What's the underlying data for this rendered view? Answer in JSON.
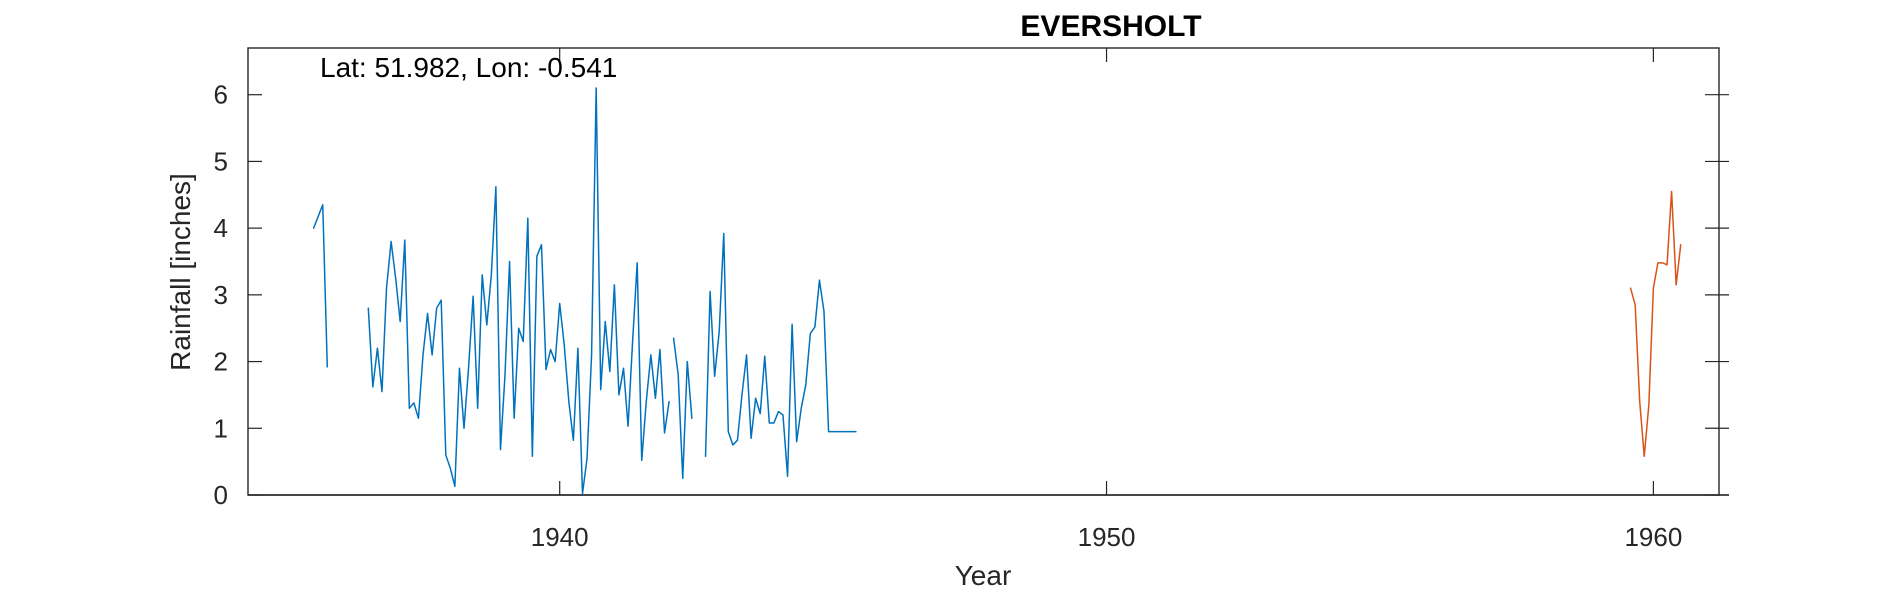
{
  "chart_data": {
    "type": "line",
    "title": "EVERSHOLT",
    "xlabel": "Year",
    "ylabel": "Rainfall [inches]",
    "annotation": "Lat: 51.982, Lon: -0.541",
    "xlim": [
      1934.3,
      1961.2
    ],
    "ylim": [
      0,
      6.7
    ],
    "x_ticks": [
      1940,
      1950,
      1960
    ],
    "x_tick_labels": [
      "1940",
      "1950",
      "1960"
    ],
    "y_ticks": [
      0,
      1,
      2,
      3,
      4,
      5,
      6
    ],
    "y_tick_labels": [
      "0",
      "1",
      "2",
      "3",
      "4",
      "5",
      "6"
    ],
    "box": true,
    "grid": false,
    "series": [
      {
        "color": "#0072BD",
        "segments": [
          {
            "x": [
              1935.5,
              1935.667,
              1935.75
            ],
            "y": [
              4.0,
              4.35,
              1.92
            ]
          },
          {
            "x": [
              1936.5,
              1936.583,
              1936.667,
              1936.75,
              1936.833,
              1936.917,
              1937.0,
              1937.083,
              1937.167,
              1937.25,
              1937.333,
              1937.417,
              1937.5,
              1937.583,
              1937.667,
              1937.75,
              1937.833,
              1937.917,
              1938.0,
              1938.083,
              1938.167,
              1938.25,
              1938.333,
              1938.417,
              1938.5,
              1938.583,
              1938.667,
              1938.75,
              1938.833,
              1938.917,
              1939.0,
              1939.083,
              1939.167,
              1939.25,
              1939.333,
              1939.417,
              1939.5,
              1939.583,
              1939.667,
              1939.75,
              1939.833,
              1939.917,
              1940.0,
              1940.083,
              1940.167,
              1940.25,
              1940.333,
              1940.417,
              1940.5,
              1940.583,
              1940.667,
              1940.75,
              1940.833,
              1940.917,
              1941.0,
              1941.083,
              1941.167,
              1941.25,
              1941.333,
              1941.417,
              1941.5,
              1941.583,
              1941.667,
              1941.75,
              1941.833,
              1941.917,
              1942.0
            ],
            "y": [
              2.8,
              1.62,
              2.2,
              1.55,
              3.1,
              3.8,
              3.25,
              2.6,
              3.82,
              1.3,
              1.38,
              1.15,
              2.1,
              2.72,
              2.1,
              2.8,
              2.92,
              0.6,
              0.4,
              0.13,
              1.9,
              1.0,
              1.9,
              2.98,
              1.3,
              3.3,
              2.55,
              3.3,
              4.62,
              0.68,
              1.8,
              3.5,
              1.15,
              2.5,
              2.3,
              4.15,
              0.58,
              3.58,
              3.75,
              1.88,
              2.18,
              2.0,
              2.87,
              2.25,
              1.4,
              0.82,
              2.2,
              0.02,
              0.55,
              2.1,
              6.1,
              1.58,
              2.6,
              1.85,
              3.15,
              1.5,
              1.9,
              1.03,
              2.3,
              3.48,
              0.52,
              1.4,
              2.1,
              1.45,
              2.18,
              0.93,
              1.4
            ]
          },
          {
            "x": [
              1942.083,
              1942.167,
              1942.25,
              1942.333,
              1942.417
            ],
            "y": [
              2.35,
              1.8,
              0.25,
              2.0,
              1.15
            ]
          },
          {
            "x": [
              1942.667,
              1942.75,
              1942.833,
              1942.917,
              1943.0,
              1943.083,
              1943.167,
              1943.25,
              1943.333,
              1943.417,
              1943.5,
              1943.583,
              1943.667,
              1943.75,
              1943.833,
              1943.917,
              1944.0,
              1944.083,
              1944.167,
              1944.25,
              1944.333,
              1944.417,
              1944.5,
              1944.583,
              1944.667,
              1944.75,
              1944.833,
              1944.917,
              1945.0,
              1945.083,
              1945.167,
              1945.25,
              1945.333,
              1945.417
            ],
            "y": [
              0.58,
              3.05,
              1.78,
              2.45,
              3.92,
              0.95,
              0.75,
              0.82,
              1.5,
              2.1,
              0.85,
              1.45,
              1.22,
              2.08,
              1.08,
              1.08,
              1.25,
              1.2,
              0.28,
              2.56,
              0.8,
              1.3,
              1.65,
              2.42,
              2.52,
              3.22,
              2.75,
              0.95,
              0.95,
              0.95,
              0.95,
              0.95,
              0.95,
              0.95
            ]
          }
        ]
      },
      {
        "color": "#D95319",
        "segments": [
          {
            "x": [
              1959.583,
              1959.667,
              1959.75,
              1959.833,
              1959.917,
              1960.0,
              1960.083,
              1960.167,
              1960.25,
              1960.333,
              1960.417,
              1960.5
            ],
            "y": [
              3.1,
              2.85,
              1.4,
              0.58,
              1.35,
              3.1,
              3.48,
              3.48,
              3.45,
              4.55,
              3.15,
              3.75
            ]
          }
        ]
      }
    ]
  }
}
